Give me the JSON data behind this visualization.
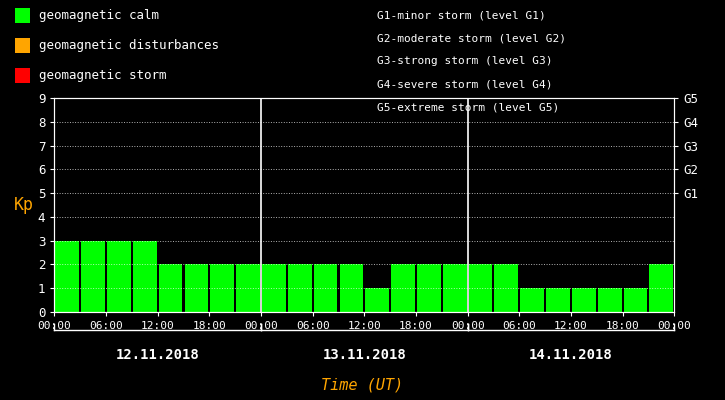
{
  "background_color": "#000000",
  "plot_bg_color": "#000000",
  "bar_color_calm": "#00ff00",
  "bar_color_disturbance": "#ffa500",
  "bar_color_storm": "#ff0000",
  "text_color": "#ffffff",
  "orange_color": "#ffa500",
  "grid_color": "#ffffff",
  "day_separator_color": "#ffffff",
  "kp_values": [
    3,
    3,
    3,
    3,
    2,
    2,
    2,
    2,
    2,
    2,
    2,
    2,
    1,
    2,
    2,
    2,
    2,
    2,
    1,
    1,
    1,
    1,
    1,
    2
  ],
  "ylim": [
    0,
    9
  ],
  "yticks": [
    0,
    1,
    2,
    3,
    4,
    5,
    6,
    7,
    8,
    9
  ],
  "ylabel": "Kp",
  "xlabel": "Time (UT)",
  "legend_items": [
    {
      "label": "geomagnetic calm",
      "color": "#00ff00"
    },
    {
      "label": "geomagnetic disturbances",
      "color": "#ffa500"
    },
    {
      "label": "geomagnetic storm",
      "color": "#ff0000"
    }
  ],
  "right_labels": [
    {
      "y": 5,
      "text": "G1"
    },
    {
      "y": 6,
      "text": "G2"
    },
    {
      "y": 7,
      "text": "G3"
    },
    {
      "y": 8,
      "text": "G4"
    },
    {
      "y": 9,
      "text": "G5"
    }
  ],
  "legend_text_right": [
    "G1-minor storm (level G1)",
    "G2-moderate storm (level G2)",
    "G3-strong storm (level G3)",
    "G4-severe storm (level G4)",
    "G5-extreme storm (level G5)"
  ],
  "dates": [
    "12.11.2018",
    "13.11.2018",
    "14.11.2018"
  ],
  "xtick_labels": [
    "00:00",
    "06:00",
    "12:00",
    "18:00",
    "00:00",
    "06:00",
    "12:00",
    "18:00",
    "00:00",
    "06:00",
    "12:00",
    "18:00",
    "00:00"
  ],
  "bar_width": 0.92,
  "figsize": [
    7.25,
    4.0
  ],
  "dpi": 100
}
